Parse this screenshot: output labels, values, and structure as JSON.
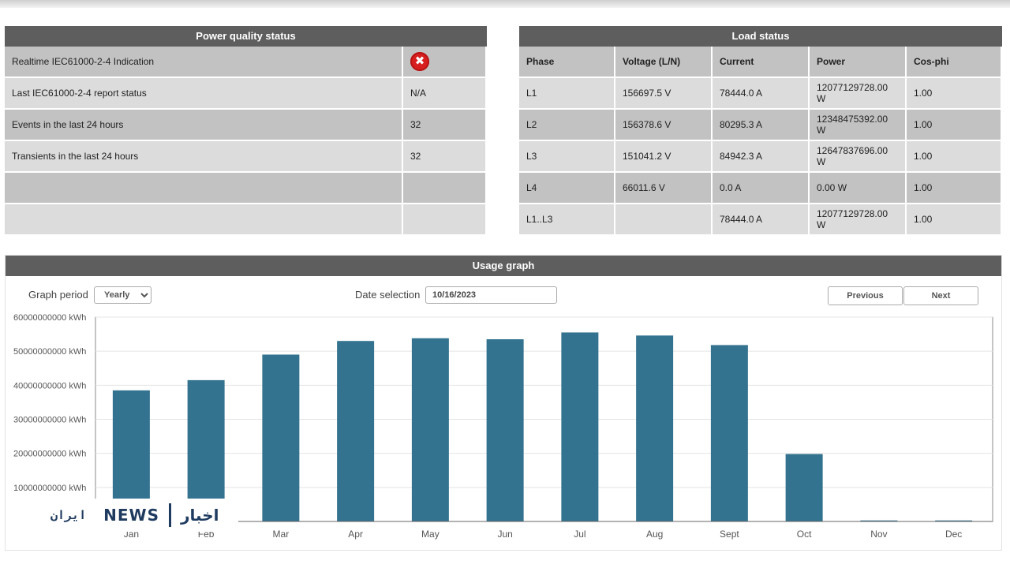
{
  "power_quality": {
    "title": "Power quality status",
    "rows": [
      {
        "label": "Realtime IEC61000-2-4 Indication",
        "value": "",
        "icon": "error-x-icon",
        "icon_glyph": "✖"
      },
      {
        "label": "Last IEC61000-2-4 report status",
        "value": "N/A"
      },
      {
        "label": "Events in the last 24 hours",
        "value": "32"
      },
      {
        "label": "Transients in the last 24 hours",
        "value": "32"
      },
      {
        "label": "",
        "value": ""
      },
      {
        "label": "",
        "value": ""
      }
    ]
  },
  "load_status": {
    "title": "Load status",
    "headers": [
      "Phase",
      "Voltage (L/N)",
      "Current",
      "Power",
      "Cos-phi"
    ],
    "rows": [
      [
        "L1",
        "156697.5 V",
        "78444.0 A",
        "12077129728.00 W",
        "1.00"
      ],
      [
        "L2",
        "156378.6 V",
        "80295.3 A",
        "12348475392.00 W",
        "1.00"
      ],
      [
        "L3",
        "151041.2 V",
        "84942.3 A",
        "12647837696.00 W",
        "1.00"
      ],
      [
        "L4",
        "66011.6 V",
        "0.0 A",
        "0.00 W",
        "1.00"
      ],
      [
        "L1..L3",
        "",
        "78444.0 A",
        "12077129728.00 W",
        "1.00"
      ]
    ]
  },
  "usage": {
    "title": "Usage graph",
    "graph_period_label": "Graph period",
    "graph_period_value": "Yearly",
    "date_selection_label": "Date selection",
    "date_value": "10/16/2023",
    "previous_label": "Previous",
    "next_label": "Next"
  },
  "chart_data": {
    "type": "bar",
    "categories": [
      "Jan",
      "Feb",
      "Mar",
      "Apr",
      "May",
      "Jun",
      "Jul",
      "Aug",
      "Sept",
      "Oct",
      "Nov",
      "Dec"
    ],
    "values": [
      38500000000,
      41500000000,
      49000000000,
      53000000000,
      53800000000,
      53500000000,
      55500000000,
      54600000000,
      51800000000,
      19800000000,
      300000000,
      300000000
    ],
    "ylim": [
      0,
      60000000000
    ],
    "yticks": [
      "60000000000 kWh",
      "50000000000 kWh",
      "40000000000 kWh",
      "30000000000 kWh",
      "20000000000 kWh",
      "10000000000 kWh"
    ],
    "ytick_values": [
      60000000000,
      50000000000,
      40000000000,
      30000000000,
      20000000000,
      10000000000
    ],
    "bar_color": "#33738f",
    "grid": true
  },
  "watermark": {
    "logo_text": "ايران",
    "news_text": "NEWS",
    "fa_text": "اخبار"
  }
}
